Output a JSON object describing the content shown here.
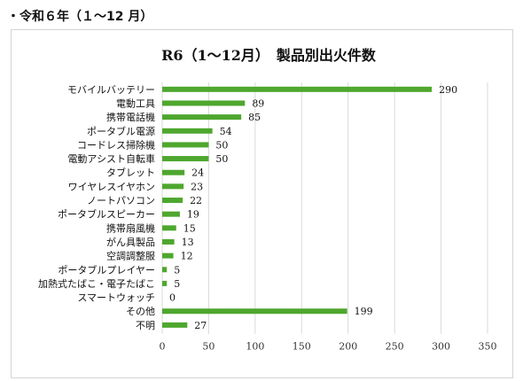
{
  "heading": "・令和６年（１〜12 月）",
  "chart_data": {
    "type": "bar",
    "orientation": "horizontal",
    "title": "R6（1〜12月）　製品別出火件数",
    "categories": [
      "モバイルバッテリー",
      "電動工具",
      "携帯電話機",
      "ポータブル電源",
      "コードレス掃除機",
      "電動アシスト自転車",
      "タブレット",
      "ワイヤレスイヤホン",
      "ノートパソコン",
      "ポータブルスピーカー",
      "携帯扇風機",
      "がん具製品",
      "空調調整服",
      "ポータブルプレイヤー",
      "加熱式たばこ・電子たばこ",
      "スマートウォッチ",
      "その他",
      "不明"
    ],
    "values": [
      290,
      89,
      85,
      54,
      50,
      50,
      24,
      23,
      22,
      19,
      15,
      13,
      12,
      5,
      5,
      0,
      199,
      27
    ],
    "value_labels": [
      "290",
      "89",
      "85",
      "54",
      "50",
      "50",
      "24",
      "23",
      "22",
      "19",
      "15",
      "13",
      "12",
      "5",
      "5",
      "0",
      "199",
      "27"
    ],
    "xlim": [
      0,
      350
    ],
    "xticks": [
      0,
      50,
      100,
      150,
      200,
      250,
      300,
      350
    ],
    "xtick_labels": [
      "0",
      "50",
      "100",
      "150",
      "200",
      "250",
      "300",
      "350"
    ],
    "grid": true,
    "bar_color": "#4ea72e",
    "grid_color": "#d9d9d9"
  }
}
